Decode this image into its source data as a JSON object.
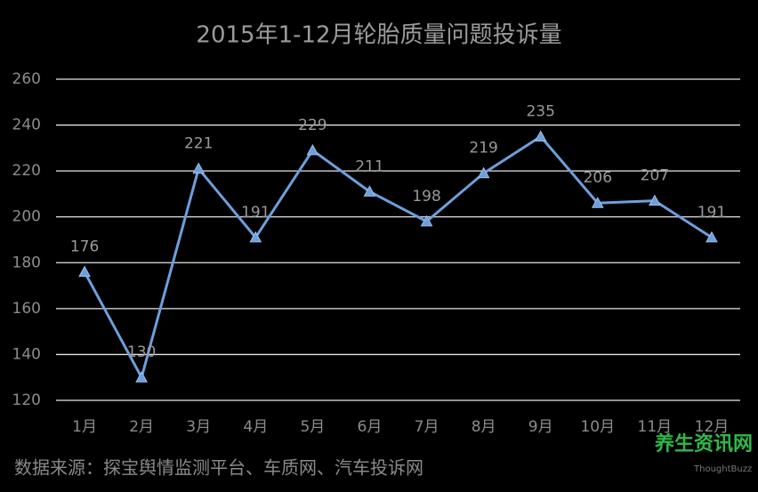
{
  "chart_data": {
    "type": "line",
    "title": "2015年1-12月轮胎质量问题投诉量",
    "categories": [
      "1月",
      "2月",
      "3月",
      "4月",
      "5月",
      "6月",
      "7月",
      "8月",
      "9月",
      "10月",
      "11月",
      "12月"
    ],
    "values": [
      176,
      130,
      221,
      191,
      229,
      211,
      198,
      219,
      235,
      206,
      207,
      191
    ],
    "color": "#6d9fdc",
    "ylim": [
      120,
      260
    ],
    "yticks": [
      120,
      140,
      160,
      180,
      200,
      220,
      240,
      260
    ],
    "grid": true,
    "source": "数据来源：探宝舆情监测平台、车质网、汽车投诉网"
  },
  "watermark": {
    "text": "养生资讯网",
    "brand": "ThoughtBuzz"
  }
}
